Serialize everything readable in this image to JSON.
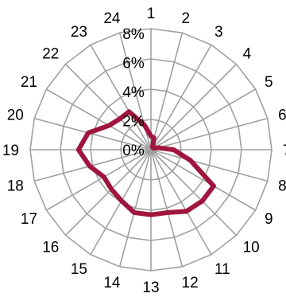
{
  "chart_data": {
    "type": "radar",
    "categories": [
      "1",
      "2",
      "3",
      "4",
      "5",
      "6",
      "7",
      "8",
      "9",
      "10",
      "11",
      "12",
      "13",
      "14",
      "15",
      "16",
      "17",
      "18",
      "19",
      "20",
      "21",
      "22",
      "23",
      "24"
    ],
    "series": [
      {
        "color": "#A0153E",
        "values": [
          0.9,
          0.8,
          0.2,
          0.2,
          0.2,
          0.5,
          1.5,
          2.7,
          4.8,
          4.8,
          4.7,
          4.3,
          4.3,
          4.3,
          3.9,
          3.7,
          3.6,
          4.2,
          4.8,
          4.3,
          3.2,
          2.9,
          2.9,
          1.7
        ]
      }
    ],
    "r_ticks": [
      "0%",
      "2%",
      "4%",
      "6%",
      "8%"
    ],
    "r_range": [
      0,
      8
    ],
    "grid": true,
    "legend": "none",
    "grid_color": "#a0a0a0"
  }
}
